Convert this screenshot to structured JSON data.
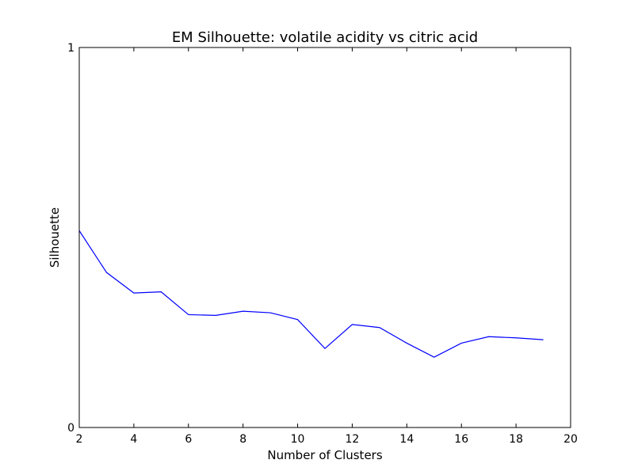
{
  "chart_data": {
    "type": "line",
    "title": "EM Silhouette: volatile acidity vs citric acid",
    "xlabel": "Number of Clusters",
    "ylabel": "Silhouette",
    "xlim": [
      2,
      20
    ],
    "ylim": [
      0,
      1
    ],
    "xticks": [
      2,
      4,
      6,
      8,
      10,
      12,
      14,
      16,
      18,
      20
    ],
    "yticks": [
      0,
      1
    ],
    "grid": false,
    "series": [
      {
        "color": "#0000ff",
        "x": [
          2,
          3,
          4,
          5,
          6,
          7,
          8,
          9,
          10,
          11,
          12,
          13,
          14,
          15,
          16,
          17,
          18,
          19
        ],
        "y": [
          0.518,
          0.408,
          0.354,
          0.357,
          0.297,
          0.295,
          0.306,
          0.302,
          0.284,
          0.208,
          0.271,
          0.263,
          0.222,
          0.185,
          0.222,
          0.239,
          0.236,
          0.231
        ]
      }
    ]
  }
}
